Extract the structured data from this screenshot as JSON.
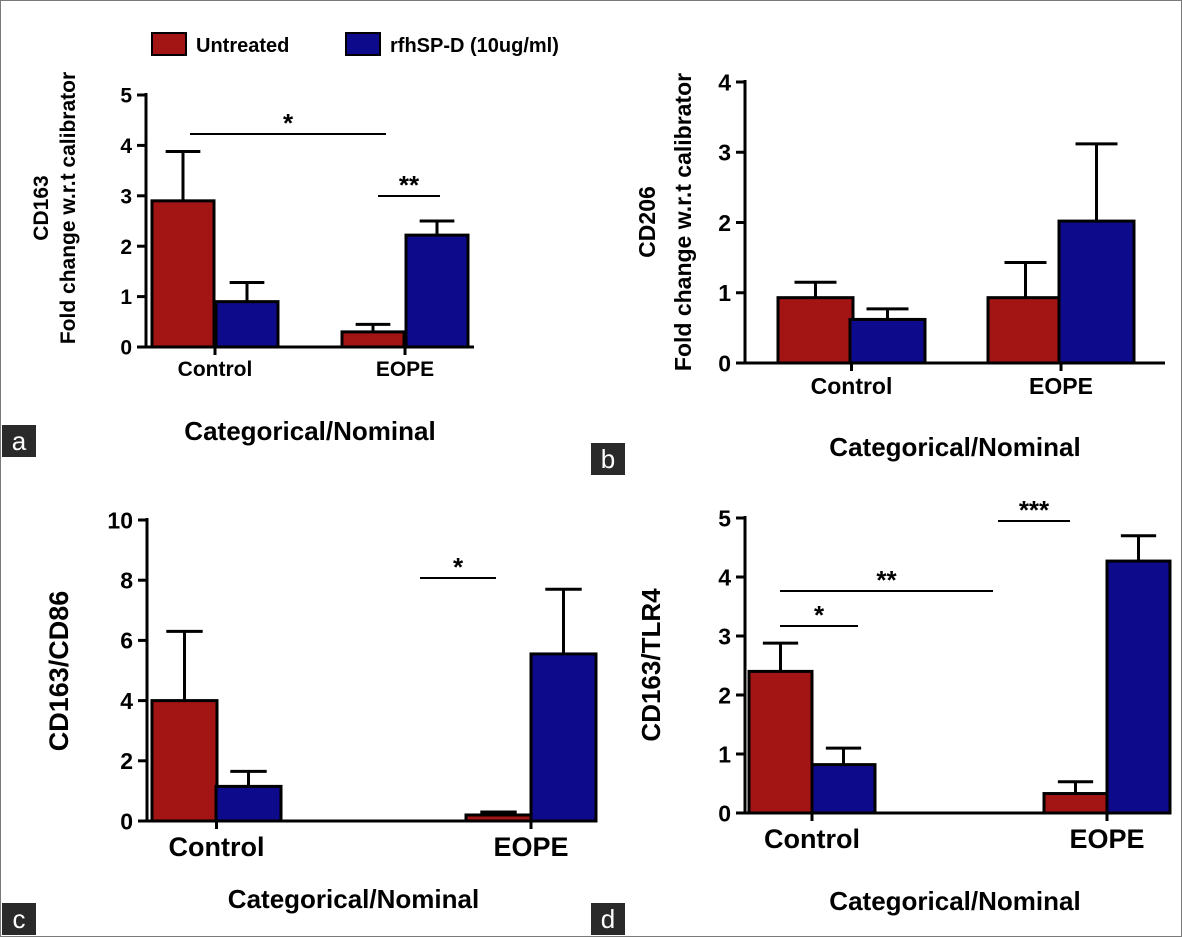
{
  "colors": {
    "untreated": "#a31515",
    "treated": "#0e0a8c",
    "axis": "#000000",
    "panel_label_bg": "#2a2a2a",
    "panel_label_text": "#ffffff"
  },
  "legend": [
    {
      "label": "Untreated",
      "color": "#a31515"
    },
    {
      "label": "rfhSP-D (10ug/ml)",
      "color": "#0e0a8c"
    }
  ],
  "chart_data": [
    {
      "panel": "a",
      "type": "bar",
      "categories": [
        "Control",
        "EOPE"
      ],
      "series": [
        {
          "name": "Untreated",
          "values": [
            2.9,
            0.3
          ],
          "errors": [
            0.98,
            0.15
          ]
        },
        {
          "name": "rfhSP-D (10ug/ml)",
          "values": [
            0.9,
            2.22
          ],
          "errors": [
            0.38,
            0.28
          ]
        }
      ],
      "ylabel": [
        "CD163",
        "Fold change w.r.t calibrator"
      ],
      "xlabel": "Categorical/Nominal",
      "ylim": [
        0,
        5
      ],
      "yticks": [
        "0",
        "1",
        "2",
        "3",
        "4",
        "5"
      ],
      "significance": [
        {
          "from": [
            0,
            0
          ],
          "to": [
            1,
            0
          ],
          "label": "*"
        },
        {
          "from": [
            1,
            0
          ],
          "to": [
            1,
            1
          ],
          "label": "**"
        }
      ]
    },
    {
      "panel": "b",
      "type": "bar",
      "categories": [
        "Control",
        "EOPE"
      ],
      "series": [
        {
          "name": "Untreated",
          "values": [
            0.93,
            0.93
          ],
          "errors": [
            0.22,
            0.5
          ]
        },
        {
          "name": "rfhSP-D (10ug/ml)",
          "values": [
            0.62,
            2.02
          ],
          "errors": [
            0.15,
            1.1
          ]
        }
      ],
      "ylabel": [
        "CD206",
        "Fold change w.r.t calibrator"
      ],
      "xlabel": "Categorical/Nominal",
      "ylim": [
        0,
        4
      ],
      "yticks": [
        "0",
        "1",
        "2",
        "3",
        "4"
      ],
      "significance": []
    },
    {
      "panel": "c",
      "type": "bar",
      "categories": [
        "Control",
        "EOPE"
      ],
      "series": [
        {
          "name": "Untreated",
          "values": [
            4.0,
            0.2
          ],
          "errors": [
            2.3,
            0.1
          ]
        },
        {
          "name": "rfhSP-D (10ug/ml)",
          "values": [
            1.15,
            5.55
          ],
          "errors": [
            0.5,
            2.15
          ]
        }
      ],
      "ylabel": [
        "CD163/CD86"
      ],
      "xlabel": "Categorical/Nominal",
      "ylim": [
        0,
        10
      ],
      "yticks": [
        "0",
        "2",
        "4",
        "6",
        "8",
        "10"
      ],
      "significance": [
        {
          "from": [
            1,
            0
          ],
          "to": [
            1,
            1
          ],
          "label": "*"
        }
      ]
    },
    {
      "panel": "d",
      "type": "bar",
      "categories": [
        "Control",
        "EOPE"
      ],
      "series": [
        {
          "name": "Untreated",
          "values": [
            2.4,
            0.33
          ],
          "errors": [
            0.48,
            0.2
          ]
        },
        {
          "name": "rfhSP-D (10ug/ml)",
          "values": [
            0.82,
            4.27
          ],
          "errors": [
            0.28,
            0.43
          ]
        }
      ],
      "ylabel": [
        "CD163/TLR4"
      ],
      "xlabel": "Categorical/Nominal",
      "ylim": [
        0,
        5
      ],
      "yticks": [
        "0",
        "1",
        "2",
        "3",
        "4",
        "5"
      ],
      "significance": [
        {
          "from": [
            0,
            0
          ],
          "to": [
            0,
            1
          ],
          "label": "*"
        },
        {
          "from": [
            0,
            0
          ],
          "to": [
            1,
            0
          ],
          "label": "**"
        },
        {
          "from": [
            1,
            0
          ],
          "to": [
            1,
            1
          ],
          "label": "***"
        }
      ]
    }
  ]
}
